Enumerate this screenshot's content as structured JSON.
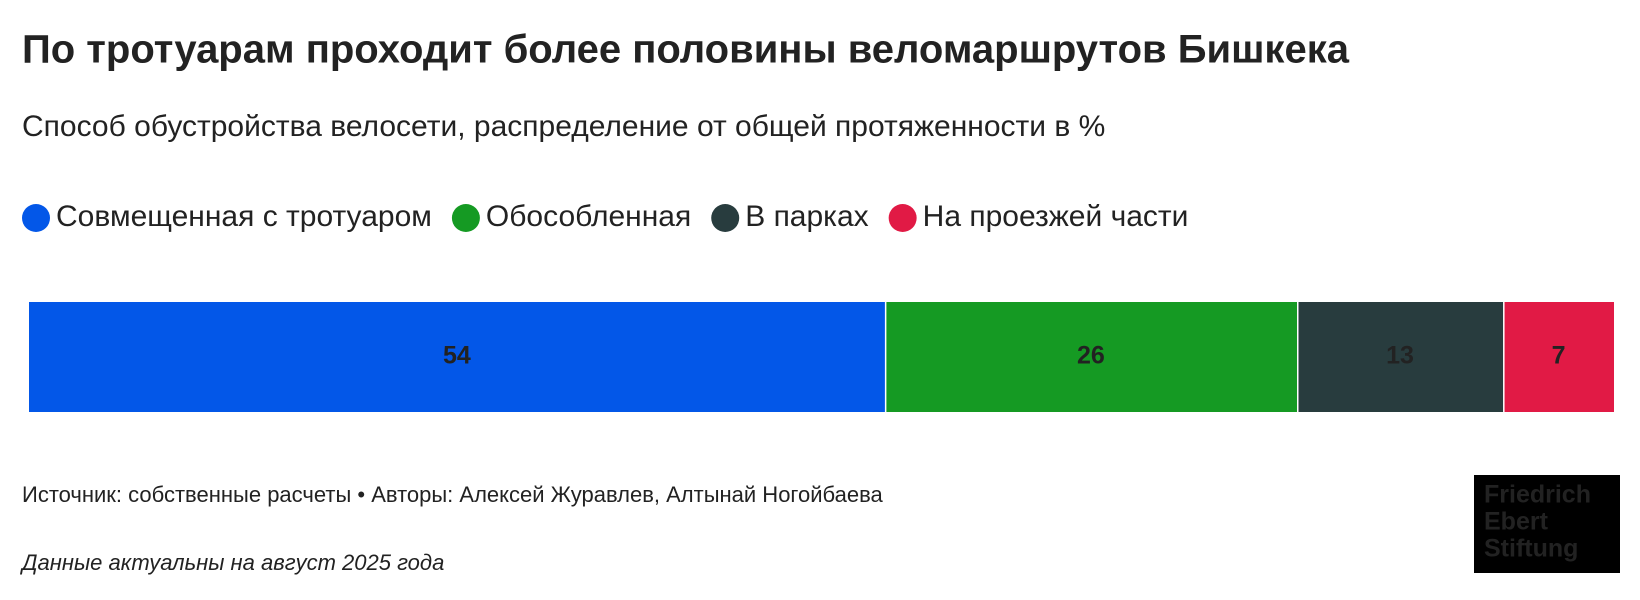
{
  "chart_data": {
    "type": "stacked_bar_horizontal",
    "title": "По тротуарам проходит более половины веломаршрутов Бишкека",
    "subtitle": "Способ обустройства велосети, распределение от общей протяженности в %",
    "series": [
      {
        "name": "Совмещенная с тротуаром",
        "color": "#0357e8",
        "values": [
          54
        ]
      },
      {
        "name": "Обособленная",
        "color": "#159a23",
        "values": [
          26
        ]
      },
      {
        "name": "В парках",
        "color": "#283c3e",
        "values": [
          13
        ]
      },
      {
        "name": "На проезжей части",
        "color": "#e11a45",
        "values": [
          7
        ]
      }
    ],
    "source": "Источник: собственные расчеты • Авторы: Алексей Журавлев, Алтынай Ногойбаева",
    "note": "Данные актуальны на август 2025 года",
    "logo": [
      "Friedrich",
      "Ebert",
      "Stiftung"
    ]
  }
}
